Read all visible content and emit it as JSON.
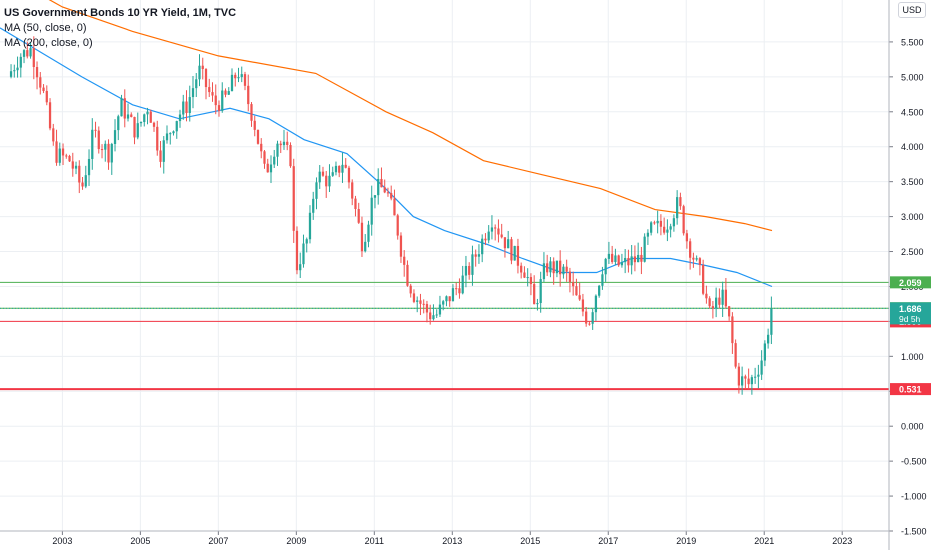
{
  "legend": {
    "title": "US Government Bonds 10 YR Yield, 1M, TVC",
    "ma50": "MA (50, close, 0)",
    "ma200": "MA (200, close, 0)"
  },
  "currency_button": "USD",
  "colors": {
    "up": "#26a69a",
    "down": "#ef5350",
    "ma50": "#2196f3",
    "ma200": "#ff6d00",
    "grid": "#eceff3",
    "hline_green": "#4caf50",
    "hline_red": "#f23645"
  },
  "chart_data": {
    "type": "candlestick",
    "title": "US Government Bonds 10 YR Yield, 1M, TVC",
    "xlabel": "",
    "ylabel": "",
    "x_ticks": [
      "2003",
      "2005",
      "2007",
      "2009",
      "2011",
      "2013",
      "2015",
      "2017",
      "2019",
      "2021",
      "2023"
    ],
    "y_ticks": [
      "5.500",
      "5.000",
      "4.500",
      "4.000",
      "3.500",
      "3.000",
      "2.500",
      "2.000",
      "1.500",
      "1.000",
      "0.500",
      "0.000",
      "-0.500",
      "-1.000",
      "-1.500"
    ],
    "xlim": [
      2001.4,
      2024.2
    ],
    "ylim": [
      -1.5,
      6.1
    ],
    "monthly_close_anchors": [
      [
        2001.6,
        5.0
      ],
      [
        2001.9,
        5.3
      ],
      [
        2002.2,
        5.4
      ],
      [
        2002.5,
        4.8
      ],
      [
        2002.8,
        3.9
      ],
      [
        2003.2,
        3.8
      ],
      [
        2003.5,
        3.4
      ],
      [
        2003.8,
        4.2
      ],
      [
        2004.2,
        3.9
      ],
      [
        2004.5,
        4.6
      ],
      [
        2004.9,
        4.2
      ],
      [
        2005.2,
        4.6
      ],
      [
        2005.5,
        3.9
      ],
      [
        2005.9,
        4.4
      ],
      [
        2006.2,
        4.6
      ],
      [
        2006.5,
        5.1
      ],
      [
        2006.9,
        4.6
      ],
      [
        2007.2,
        4.7
      ],
      [
        2007.5,
        5.1
      ],
      [
        2007.9,
        4.4
      ],
      [
        2008.2,
        3.6
      ],
      [
        2008.5,
        4.1
      ],
      [
        2008.9,
        3.8
      ],
      [
        2008.95,
        2.2
      ],
      [
        2009.3,
        2.7
      ],
      [
        2009.5,
        3.6
      ],
      [
        2009.9,
        3.5
      ],
      [
        2010.2,
        3.8
      ],
      [
        2010.4,
        3.4
      ],
      [
        2010.7,
        2.6
      ],
      [
        2011.0,
        3.4
      ],
      [
        2011.3,
        3.4
      ],
      [
        2011.6,
        2.8
      ],
      [
        2011.8,
        2.2
      ],
      [
        2012.0,
        1.9
      ],
      [
        2012.4,
        1.6
      ],
      [
        2012.6,
        1.6
      ],
      [
        2013.0,
        1.9
      ],
      [
        2013.4,
        2.2
      ],
      [
        2013.8,
        2.7
      ],
      [
        2014.0,
        3.0
      ],
      [
        2014.4,
        2.6
      ],
      [
        2014.9,
        2.2
      ],
      [
        2015.1,
        1.7
      ],
      [
        2015.4,
        2.3
      ],
      [
        2015.9,
        2.2
      ],
      [
        2016.2,
        1.8
      ],
      [
        2016.5,
        1.5
      ],
      [
        2016.9,
        2.4
      ],
      [
        2017.3,
        2.3
      ],
      [
        2017.8,
        2.4
      ],
      [
        2018.1,
        2.8
      ],
      [
        2018.5,
        2.9
      ],
      [
        2018.8,
        3.2
      ],
      [
        2019.0,
        2.7
      ],
      [
        2019.4,
        2.1
      ],
      [
        2019.6,
        1.6
      ],
      [
        2019.9,
        1.9
      ],
      [
        2020.1,
        1.5
      ],
      [
        2020.3,
        0.7
      ],
      [
        2020.6,
        0.6
      ],
      [
        2020.9,
        0.9
      ],
      [
        2021.0,
        1.1
      ],
      [
        2021.1,
        1.4
      ],
      [
        2021.2,
        1.69
      ]
    ],
    "moving_averages": [
      {
        "name": "MA (50, close, 0)",
        "points": [
          [
            2001.4,
            5.7
          ],
          [
            2002.3,
            5.4
          ],
          [
            2003.5,
            5.0
          ],
          [
            2004.8,
            4.6
          ],
          [
            2006.0,
            4.4
          ],
          [
            2007.3,
            4.55
          ],
          [
            2008.3,
            4.4
          ],
          [
            2009.2,
            4.1
          ],
          [
            2010.3,
            3.9
          ],
          [
            2011.2,
            3.45
          ],
          [
            2012.0,
            3.0
          ],
          [
            2012.8,
            2.8
          ],
          [
            2013.9,
            2.6
          ],
          [
            2014.8,
            2.4
          ],
          [
            2015.8,
            2.2
          ],
          [
            2016.7,
            2.2
          ],
          [
            2017.6,
            2.4
          ],
          [
            2018.6,
            2.4
          ],
          [
            2019.5,
            2.3
          ],
          [
            2020.3,
            2.2
          ],
          [
            2021.2,
            2.0
          ]
        ]
      },
      {
        "name": "MA (200, close, 0)",
        "points": [
          [
            2001.4,
            6.5
          ],
          [
            2003.0,
            6.0
          ],
          [
            2004.8,
            5.65
          ],
          [
            2007.0,
            5.3
          ],
          [
            2009.5,
            5.05
          ],
          [
            2011.3,
            4.5
          ],
          [
            2012.5,
            4.2
          ],
          [
            2013.8,
            3.8
          ],
          [
            2015.3,
            3.6
          ],
          [
            2016.8,
            3.4
          ],
          [
            2018.2,
            3.1
          ],
          [
            2019.5,
            3.0
          ],
          [
            2020.5,
            2.9
          ],
          [
            2021.2,
            2.8
          ]
        ]
      }
    ],
    "horizontal_lines": [
      {
        "value": 2.059,
        "label": "2.059",
        "color": "green"
      },
      {
        "value": 1.689,
        "label": "1.689",
        "color": "green"
      },
      {
        "value": 1.5,
        "label": "1.500",
        "color": "red"
      },
      {
        "value": 0.531,
        "label": "0.531",
        "color": "red"
      }
    ],
    "price_label": {
      "value": 1.686,
      "label": "1.686",
      "countdown": "9d 5h"
    }
  }
}
